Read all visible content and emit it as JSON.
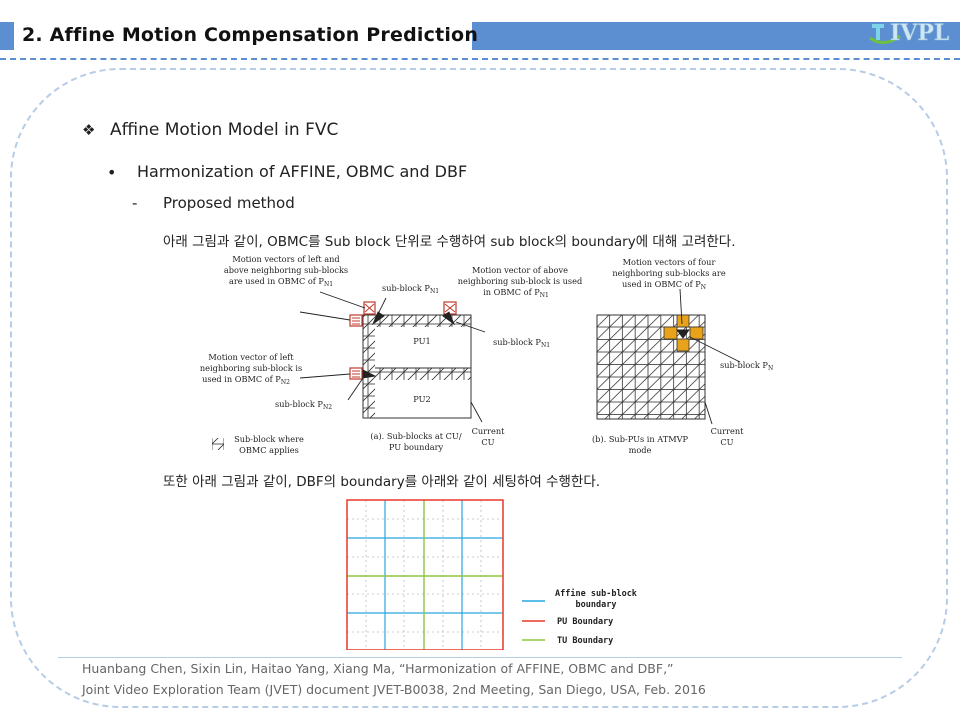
{
  "header": {
    "title": "2. Affine Motion Compensation Prediction",
    "logo_text": "IVPL"
  },
  "content": {
    "bullet1": "Affine Motion Model in FVC",
    "bullet2": "Harmonization of AFFINE, OBMC and DBF",
    "bullet3": "Proposed method",
    "bullet3_marker": "-",
    "para1": "아래 그림과 같이, OBMC를 Sub block 단위로 수행하여 sub block의 boundary에 대해 고려한다.",
    "para2": "또한 아래 그림과 같이, DBF의 boundary를 아래와 같이 세팅하여 수행한다."
  },
  "figure1": {
    "label_left_mv_l1": "Motion vectors of left and",
    "label_left_mv_l2": "above neighboring sub-blocks",
    "label_left_mv_l3": "are used in OBMC of P",
    "label_left_mv_sub": "N1",
    "label_pn1_a": "sub-block P",
    "label_pn1_a_sub": "N1",
    "label_above_l1": "Motion vector of above",
    "label_above_l2": "neighboring sub-block is used",
    "label_above_l3": "in OBMC of P",
    "label_above_sub": "N1",
    "label_pn1_b": "sub-block P",
    "label_pn1_b_sub": "N1",
    "label_leftonly_l1": "Motion vector of left",
    "label_leftonly_l2": "neighboring sub-block is",
    "label_leftonly_l3": "used in OBMC of P",
    "label_leftonly_sub": "N2",
    "label_pn2": "sub-block P",
    "label_pn2_sub": "N2",
    "pu1": "PU1",
    "pu2": "PU2",
    "current_cu_a_l1": "Current",
    "current_cu_a_l2": "CU",
    "caption_a_l1": "(a). Sub-blocks at CU/",
    "caption_a_l2": "PU boundary",
    "legend_l1": "Sub-block where",
    "legend_l2": "OBMC applies",
    "four_l1": "Motion vectors of four",
    "four_l2": "neighboring sub-blocks are",
    "four_l3": "used in OBMC of P",
    "four_sub": "N",
    "label_pn": "sub-block P",
    "label_pn_sub": "N",
    "current_cu_b_l1": "Current",
    "current_cu_b_l2": "CU",
    "caption_b_l1": "(b). Sub-PUs in ATMVP",
    "caption_b_l2": "mode"
  },
  "figure2": {
    "legend_affine_l1": "Affine sub-block",
    "legend_affine_l2": "boundary",
    "legend_pu": "PU Boundary",
    "legend_tu": "TU Boundary",
    "colors": {
      "affine": "#29a6e0",
      "pu": "#e8382b",
      "tu": "#8dc63f"
    }
  },
  "reference": {
    "line1": "Huanbang Chen, Sixin Lin, Haitao Yang, Xiang Ma, “Harmonization of AFFINE, OBMC and DBF,”",
    "line2": "Joint Video Exploration Team (JVET) document JVET-B0038, 2nd Meeting, San Diego, USA, Feb. 2016"
  }
}
